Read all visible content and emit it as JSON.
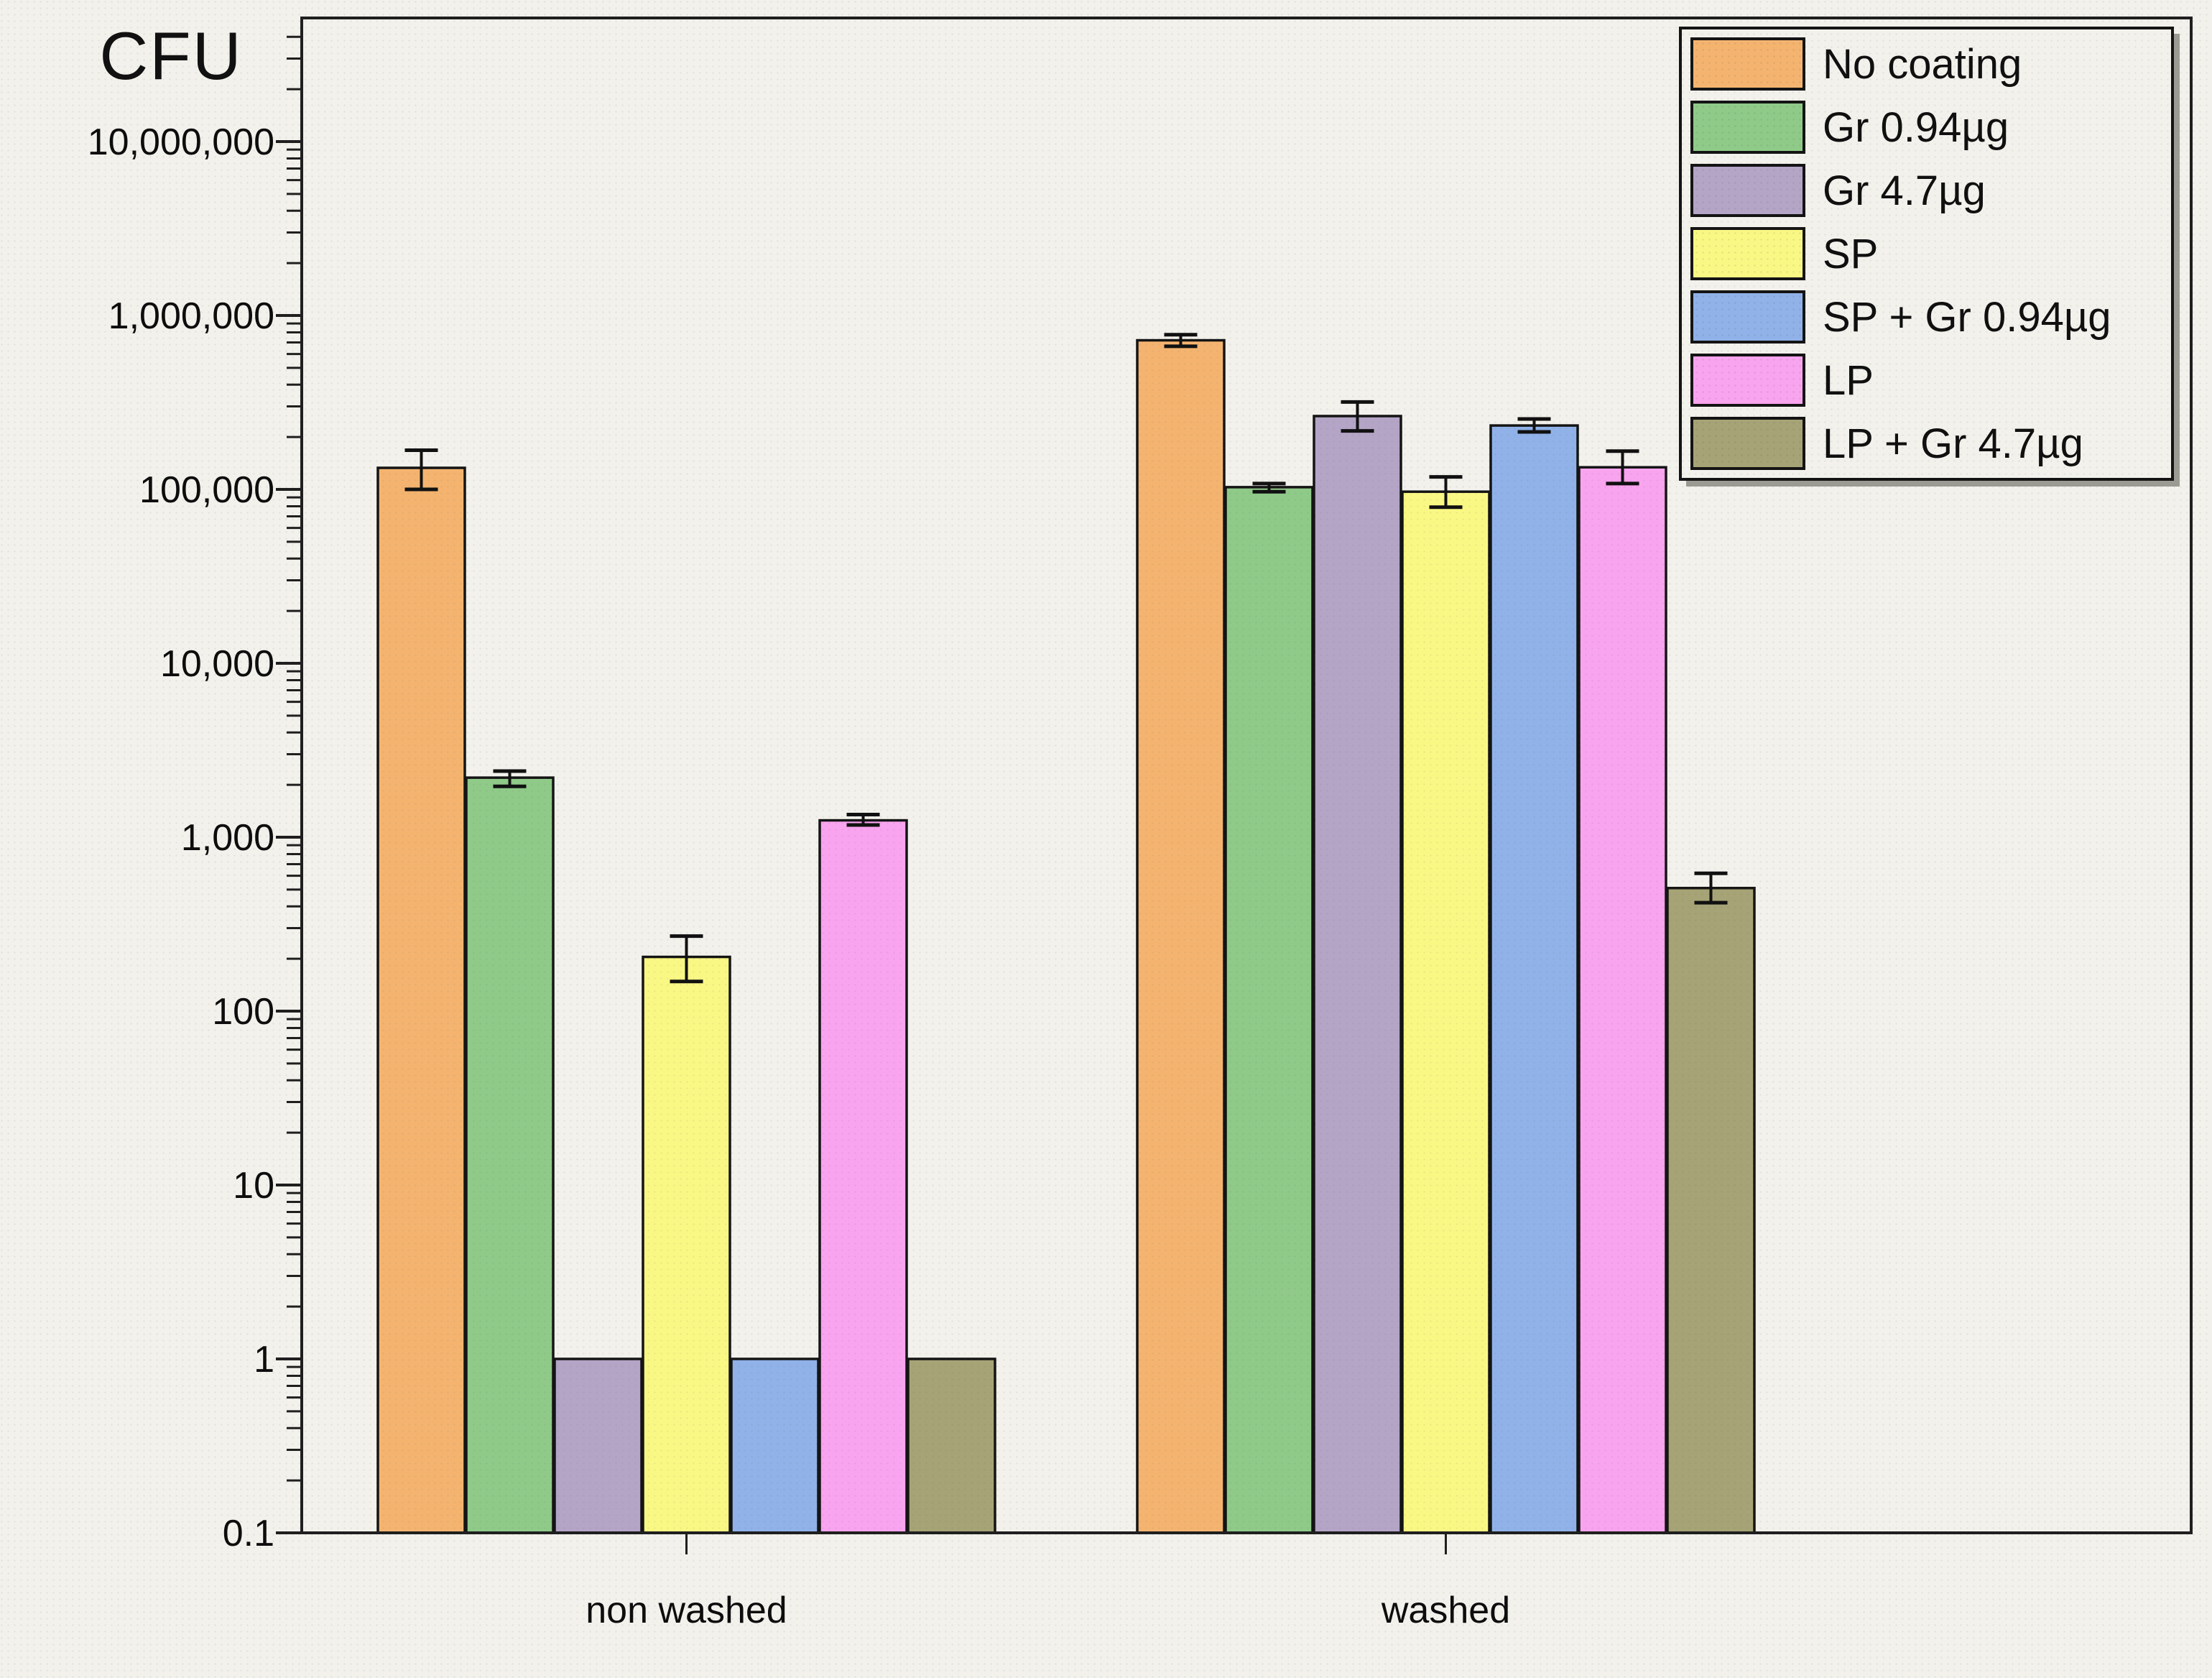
{
  "chart_data": {
    "type": "bar",
    "title": "",
    "ylabel": "CFU",
    "xlabel": "",
    "y_scale": "log",
    "ylim": [
      0.1,
      50000000
    ],
    "grid": false,
    "legend_position": "top-right",
    "categories": [
      "non washed",
      "washed"
    ],
    "y_ticks": [
      {
        "label": "10,000,000",
        "value": 10000000
      },
      {
        "label": "1,000,000",
        "value": 1000000
      },
      {
        "label": "100,000",
        "value": 100000
      },
      {
        "label": "10,000",
        "value": 10000
      },
      {
        "label": "1,000",
        "value": 1000
      },
      {
        "label": "100",
        "value": 100
      },
      {
        "label": "10",
        "value": 10
      },
      {
        "label": "1",
        "value": 1
      },
      {
        "label": "0.1",
        "value": 0.1
      }
    ],
    "series": [
      {
        "name": "No coating",
        "color": "#f4b470",
        "values": [
          133000,
          720000
        ],
        "err_hi": [
          168000,
          775000
        ],
        "err_lo": [
          100000,
          665000
        ]
      },
      {
        "name": "Gr 0.94µg",
        "color": "#8fca89",
        "values": [
          2200,
          103000
        ],
        "err_hi": [
          2400,
          108000
        ],
        "err_lo": [
          1960,
          97000
        ]
      },
      {
        "name": "Gr 4.7µg",
        "color": "#b4a5c7",
        "values": [
          1,
          264000
        ],
        "err_hi": [
          1,
          318000
        ],
        "err_lo": [
          1,
          217000
        ]
      },
      {
        "name": "SP",
        "color": "#faf884",
        "values": [
          205,
          97000
        ],
        "err_hi": [
          270,
          118000
        ],
        "err_lo": [
          148,
          79000
        ]
      },
      {
        "name": "SP + Gr 0.94µg",
        "color": "#90b2e9",
        "values": [
          1,
          233000
        ],
        "err_hi": [
          1,
          254000
        ],
        "err_lo": [
          1,
          214000
        ]
      },
      {
        "name": "LP",
        "color": "#f9a4ef",
        "values": [
          1250,
          134000
        ],
        "err_hi": [
          1350,
          166000
        ],
        "err_lo": [
          1175,
          108000
        ]
      },
      {
        "name": "LP + Gr 4.7µg",
        "color": "#a6a376",
        "values": [
          1,
          510
        ],
        "err_hi": [
          1,
          620
        ],
        "err_lo": [
          1,
          420
        ]
      }
    ]
  }
}
